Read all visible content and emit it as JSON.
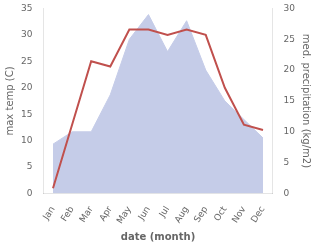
{
  "chart_data": {
    "type": "line",
    "categories": [
      "Jan",
      "Feb",
      "Mar",
      "Apr",
      "May",
      "Jun",
      "Jul",
      "Aug",
      "Sep",
      "Oct",
      "Nov",
      "Dec"
    ],
    "xlabel": "date (month)",
    "ylabel": "max temp (C)",
    "y2label": "med. precipitation (kg/m2)",
    "series": [
      {
        "type": "line",
        "color": "#c0504d",
        "values": [
          1,
          13,
          25,
          24,
          31,
          31,
          30,
          31,
          30,
          20,
          13,
          12
        ]
      },
      {
        "type": "area",
        "color": "#c5cce8",
        "axis": "y2",
        "values": [
          8,
          10,
          10,
          16,
          25,
          29,
          23,
          28,
          20,
          15,
          12,
          9
        ]
      }
    ],
    "ylim": [
      0,
      35
    ],
    "yticks": [
      0,
      5,
      10,
      15,
      20,
      25,
      30,
      35
    ],
    "y2lim": [
      0,
      30
    ],
    "y2ticks": [
      0,
      5,
      10,
      15,
      20,
      25,
      30
    ],
    "grid": false
  }
}
